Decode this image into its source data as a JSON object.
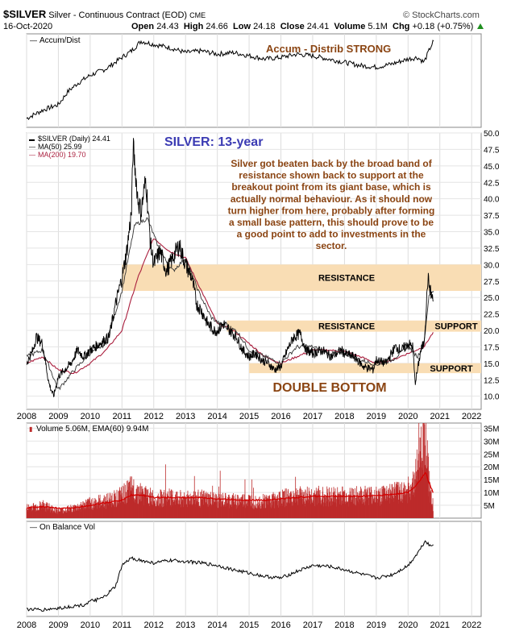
{
  "header": {
    "symbol": "$SILVER",
    "description": "Silver - Continuous Contract (EOD)",
    "exchange": "CME",
    "date": "16-Oct-2020",
    "open_label": "Open",
    "open": "24.43",
    "high_label": "High",
    "high": "24.66",
    "low_label": "Low",
    "low": "24.18",
    "close_label": "Close",
    "close": "24.41",
    "volume_label": "Volume",
    "volume": "5.1M",
    "chg_label": "Chg",
    "chg": "+0.18 (+0.75%)",
    "brand": "© StockCharts.com"
  },
  "colors": {
    "price": "#000000",
    "ma50": "#000000",
    "ma200": "#aa1f3e",
    "volume": "#bd2b2b",
    "band": "#f9ddb4",
    "annotation_brown": "#8b4513",
    "title_blue": "#3b3bb3",
    "legend_ma200": "#aa1f3e"
  },
  "chart_data": [
    {
      "type": "line",
      "name": "accum-dist",
      "title": "Accum/Dist",
      "annotation": "Accum - Distrib STRONG",
      "x": [
        2008.0,
        2008.5,
        2009.0,
        2009.3,
        2009.6,
        2010.0,
        2010.5,
        2011.0,
        2011.3,
        2011.6,
        2012.0,
        2012.5,
        2013.0,
        2013.5,
        2014.0,
        2014.5,
        2015.0,
        2015.5,
        2016.0,
        2016.5,
        2017.0,
        2017.5,
        2018.0,
        2018.5,
        2019.0,
        2019.5,
        2020.0,
        2020.3,
        2020.5,
        2020.7,
        2020.8
      ],
      "y": [
        5,
        15,
        22,
        38,
        48,
        58,
        66,
        80,
        88,
        100,
        96,
        92,
        86,
        88,
        84,
        86,
        82,
        78,
        80,
        84,
        82,
        78,
        74,
        70,
        68,
        72,
        78,
        80,
        74,
        92,
        100
      ]
    },
    {
      "type": "line",
      "name": "price",
      "title": "$SILVER (Daily) 24.41",
      "headline": "SILVER: 13-year",
      "commentary": "Silver got beaten back by the broad band of resistance shown back to support at the breakout point from its giant base, which is actually normal behaviour. As it should now turn higher from here, probably after forming a small base pattern, this should prove to be a good point to add to investments in the sector.",
      "legend": [
        {
          "label": "$SILVER (Daily) 24.41"
        },
        {
          "label": "MA(50) 25.99"
        },
        {
          "label": "MA(200) 19.70"
        }
      ],
      "ylim": [
        8,
        50
      ],
      "yticks": [
        10.0,
        12.5,
        15.0,
        17.5,
        20.0,
        22.5,
        25.0,
        27.5,
        30.0,
        32.5,
        35.0,
        37.5,
        40.0,
        42.5,
        45.0,
        47.5,
        50.0
      ],
      "xticks": [
        "2008",
        "2009",
        "2010",
        "2011",
        "2012",
        "2013",
        "2014",
        "2015",
        "2016",
        "2017",
        "2018",
        "2019",
        "2020",
        "2021",
        "2022"
      ],
      "bands": [
        {
          "label": "RESISTANCE",
          "low": 26.0,
          "high": 30.0,
          "from": 2011.0
        },
        {
          "label": "RESISTANCE",
          "low": 19.8,
          "high": 21.5,
          "from": 2014.3,
          "right_label": "SUPPORT"
        },
        {
          "label": "SUPPORT",
          "low": 13.5,
          "high": 15.0,
          "from": 2015.0
        }
      ],
      "pattern_label": "DOUBLE BOTTOM",
      "series": [
        {
          "name": "$SILVER",
          "x": [
            2008.0,
            2008.2,
            2008.3,
            2008.5,
            2008.7,
            2008.85,
            2009.0,
            2009.2,
            2009.4,
            2009.6,
            2009.8,
            2010.0,
            2010.3,
            2010.6,
            2010.8,
            2011.0,
            2011.15,
            2011.3,
            2011.35,
            2011.5,
            2011.6,
            2011.75,
            2011.9,
            2012.0,
            2012.2,
            2012.4,
            2012.6,
            2012.8,
            2013.0,
            2013.2,
            2013.35,
            2013.5,
            2013.7,
            2013.9,
            2014.0,
            2014.2,
            2014.4,
            2014.6,
            2014.8,
            2015.0,
            2015.2,
            2015.4,
            2015.6,
            2015.8,
            2016.0,
            2016.2,
            2016.4,
            2016.6,
            2016.8,
            2017.0,
            2017.3,
            2017.6,
            2017.9,
            2018.0,
            2018.3,
            2018.6,
            2018.9,
            2019.0,
            2019.3,
            2019.6,
            2019.8,
            2020.0,
            2020.15,
            2020.22,
            2020.3,
            2020.4,
            2020.5,
            2020.58,
            2020.62,
            2020.7,
            2020.79
          ],
          "values": [
            15,
            17,
            19,
            18,
            12,
            10,
            13,
            14,
            15,
            17,
            16,
            17,
            18,
            19,
            24,
            28,
            32,
            38,
            48,
            40,
            38,
            43,
            33,
            30,
            32,
            29,
            31,
            33,
            30,
            28,
            24,
            23,
            21,
            20,
            20,
            21,
            20,
            19,
            17,
            16,
            16.5,
            15.5,
            15,
            14,
            14.5,
            17,
            19,
            19.5,
            17,
            16.5,
            17,
            16,
            17,
            16.5,
            16,
            14.5,
            14,
            15.5,
            15,
            17.5,
            17,
            18,
            17.5,
            12,
            14,
            17,
            18,
            24,
            28,
            26,
            24.4
          ]
        },
        {
          "name": "MA(50)",
          "x": [
            2008.0,
            2008.5,
            2009.0,
            2009.5,
            2010.0,
            2010.5,
            2011.0,
            2011.4,
            2011.8,
            2012.2,
            2012.6,
            2013.0,
            2013.4,
            2013.8,
            2014.2,
            2014.6,
            2015.0,
            2015.5,
            2016.0,
            2016.5,
            2017.0,
            2017.5,
            2018.0,
            2018.5,
            2019.0,
            2019.5,
            2020.0,
            2020.3,
            2020.5,
            2020.65,
            2020.79
          ],
          "values": [
            16,
            17,
            11,
            14,
            16.5,
            18,
            26,
            36,
            37,
            32,
            29,
            31,
            26,
            22,
            20.5,
            20,
            17,
            16,
            15,
            17.5,
            17.5,
            16.5,
            16.5,
            15.5,
            14.8,
            15.5,
            17.5,
            16,
            18,
            25,
            26
          ]
        },
        {
          "name": "MA(200)",
          "x": [
            2008.0,
            2008.5,
            2009.0,
            2009.5,
            2010.0,
            2010.5,
            2011.0,
            2011.5,
            2012.0,
            2012.5,
            2013.0,
            2013.5,
            2014.0,
            2014.5,
            2015.0,
            2015.5,
            2016.0,
            2016.5,
            2017.0,
            2017.5,
            2018.0,
            2018.5,
            2019.0,
            2019.5,
            2020.0,
            2020.5,
            2020.79
          ],
          "values": [
            15,
            16,
            14,
            13.5,
            15,
            17,
            20,
            28,
            34,
            32,
            31,
            26,
            21,
            20,
            18,
            16,
            15,
            16,
            17,
            17,
            16.8,
            16,
            15,
            15.5,
            16.5,
            17.5,
            19.7
          ]
        }
      ]
    },
    {
      "type": "bar",
      "name": "volume",
      "title": "Volume 5.06M, EMA(60) 9.94M",
      "ylim": [
        0,
        37
      ],
      "yticks": [
        "5M",
        "10M",
        "15M",
        "20M",
        "25M",
        "30M",
        "35M"
      ],
      "ytick_values": [
        5,
        10,
        15,
        20,
        25,
        30,
        35
      ],
      "x": [
        2008.0,
        2008.5,
        2009.0,
        2009.5,
        2010.0,
        2010.5,
        2011.0,
        2011.3,
        2011.6,
        2012.0,
        2012.5,
        2013.0,
        2013.5,
        2014.0,
        2014.5,
        2015.0,
        2015.5,
        2016.0,
        2016.5,
        2017.0,
        2017.5,
        2018.0,
        2018.5,
        2019.0,
        2019.5,
        2020.0,
        2020.2,
        2020.45,
        2020.55,
        2020.65,
        2020.79
      ],
      "values": [
        4,
        5,
        3,
        4,
        6,
        7,
        9,
        12,
        10,
        8,
        8,
        8,
        8,
        7,
        7,
        7,
        7,
        8,
        9,
        9,
        9,
        9,
        9,
        9,
        10,
        11,
        14,
        30,
        35,
        16,
        5
      ],
      "ema": [
        4,
        4.5,
        3.8,
        4,
        5,
        6,
        7,
        9,
        9,
        8,
        8,
        8,
        8,
        7.5,
        7.2,
        7,
        7,
        7.5,
        8,
        8.5,
        8.5,
        8.5,
        8.5,
        8.8,
        9.2,
        10,
        12,
        16,
        18,
        14,
        9.9
      ]
    },
    {
      "type": "line",
      "name": "obv",
      "title": "On Balance Vol",
      "x": [
        2008.0,
        2008.5,
        2009.0,
        2009.4,
        2009.8,
        2010.0,
        2010.4,
        2010.8,
        2011.0,
        2011.3,
        2011.7,
        2012.0,
        2012.5,
        2013.0,
        2013.5,
        2014.0,
        2014.5,
        2015.0,
        2015.5,
        2016.0,
        2016.5,
        2017.0,
        2017.5,
        2018.0,
        2018.5,
        2019.0,
        2019.5,
        2020.0,
        2020.3,
        2020.55,
        2020.7,
        2020.79
      ],
      "y": [
        3,
        2,
        4,
        6,
        8,
        12,
        16,
        30,
        55,
        64,
        60,
        58,
        61,
        60,
        58,
        55,
        50,
        46,
        42,
        40,
        48,
        55,
        54,
        50,
        45,
        40,
        44,
        55,
        70,
        85,
        78,
        80
      ]
    }
  ]
}
